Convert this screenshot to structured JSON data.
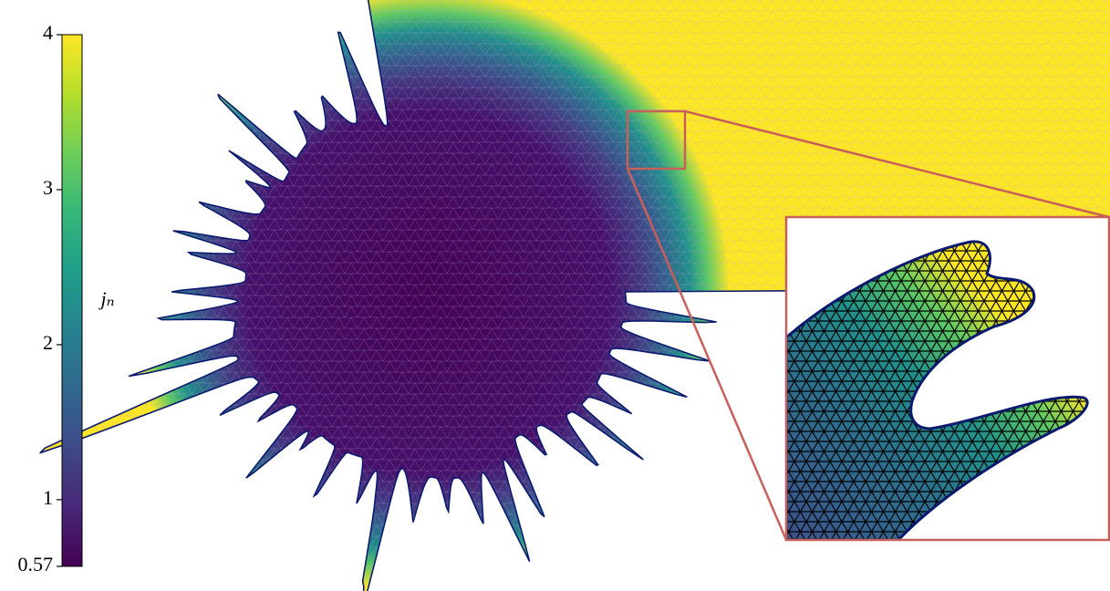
{
  "chart_data": {
    "type": "mesh",
    "colormap": "viridis",
    "zlim": [
      0.57,
      4
    ],
    "zticks": [
      0.57,
      1,
      2,
      3,
      4
    ],
    "colorbar_label": "jₙ"
  }
}
